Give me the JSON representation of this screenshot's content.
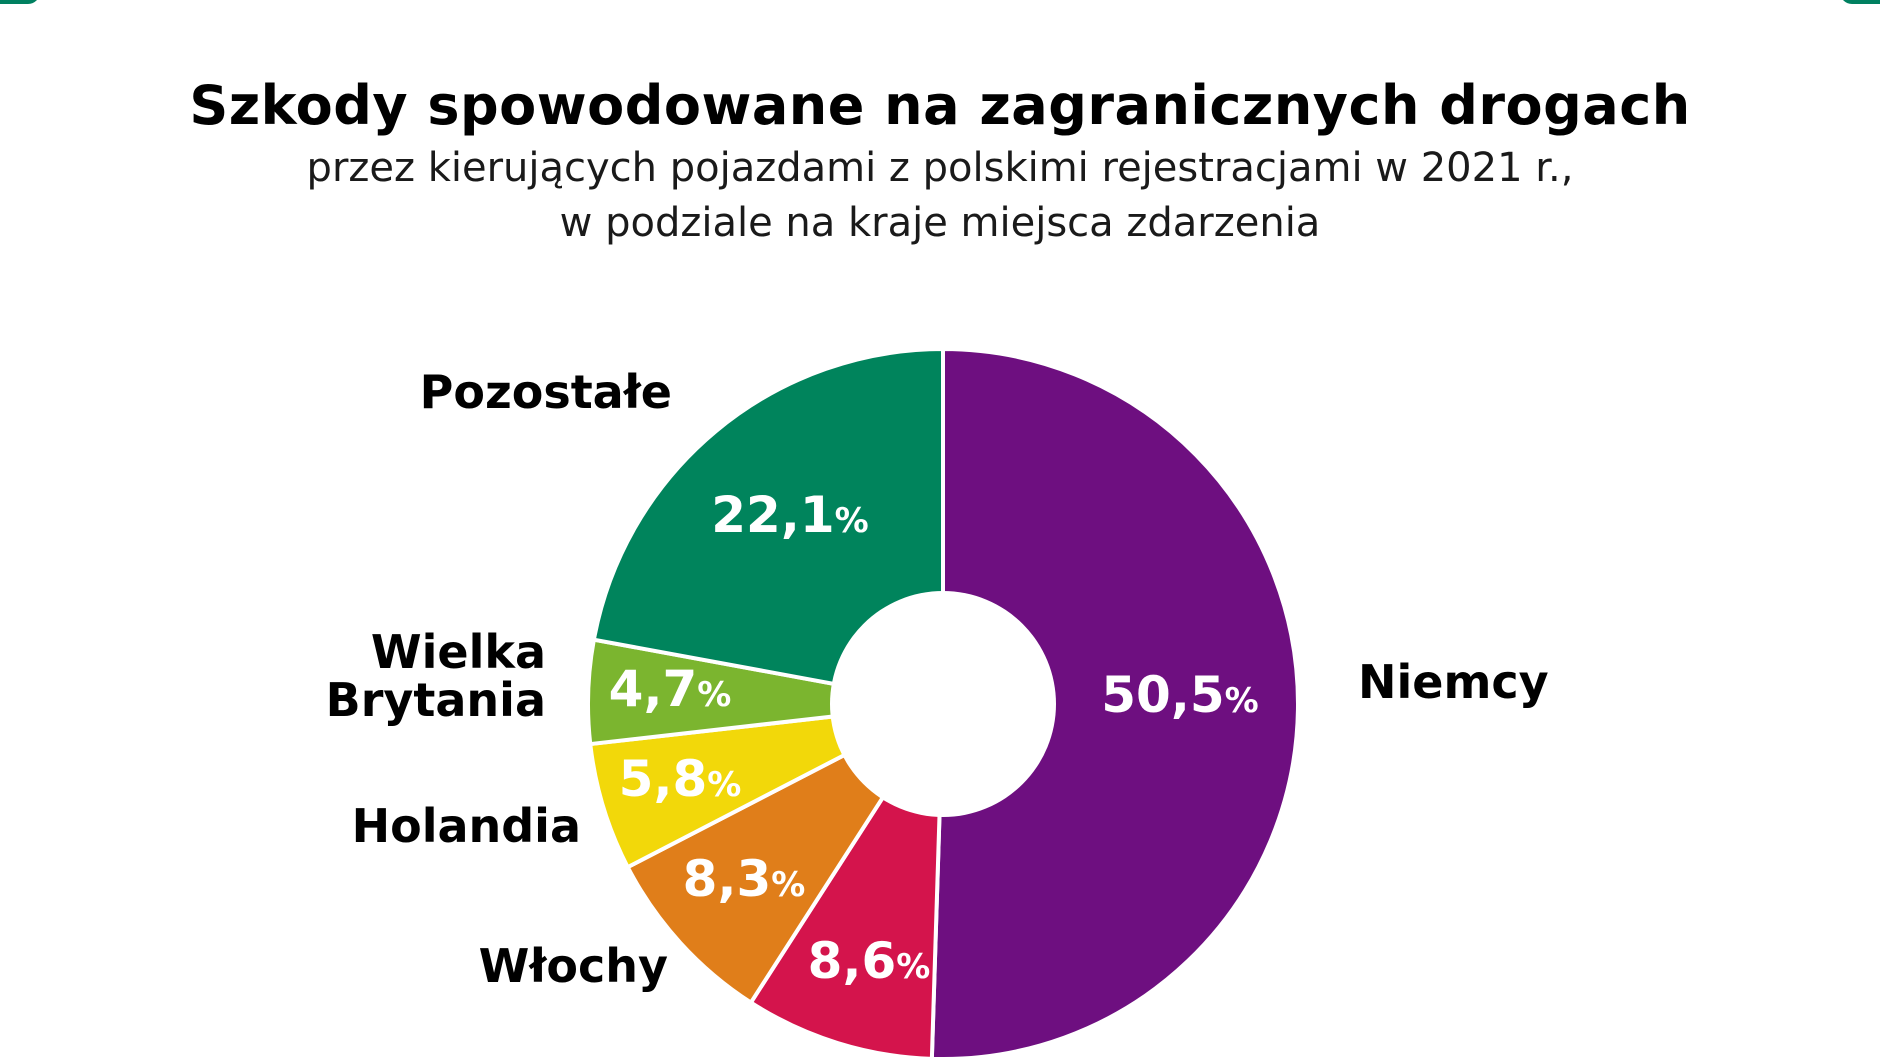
{
  "colors": {
    "corner_accent": "#008060"
  },
  "chart_data": {
    "type": "pie",
    "title": "Szkody spowodowane na zagranicznych drogach",
    "subtitle_lines": [
      "przez kierujących pojazdami z polskimi rejestracjami w 2021 r.,",
      "w podziale na kraje miejsca zdarzenia"
    ],
    "donut": true,
    "start": "top, clockwise",
    "slices": [
      {
        "label": "Niemcy",
        "value": 50.5,
        "value_text": "50,5",
        "unit": "%",
        "color": "#6e0f80"
      },
      {
        "label": "",
        "value": 8.6,
        "value_text": "8,6",
        "unit": "%",
        "color": "#d4144c"
      },
      {
        "label": "Włochy",
        "value": 8.3,
        "value_text": "8,3",
        "unit": "%",
        "color": "#e07e1a"
      },
      {
        "label": "Holandia",
        "value": 5.8,
        "value_text": "5,8",
        "unit": "%",
        "color": "#f2d80a"
      },
      {
        "label": "Wielka Brytania",
        "label_lines": [
          "Wielka",
          "Brytania"
        ],
        "value": 4.7,
        "value_text": "4,7",
        "unit": "%",
        "color": "#7bb52f"
      },
      {
        "label": "Pozostałe",
        "value": 22.1,
        "value_text": "22,1",
        "unit": "%",
        "color": "#00845c"
      }
    ]
  }
}
